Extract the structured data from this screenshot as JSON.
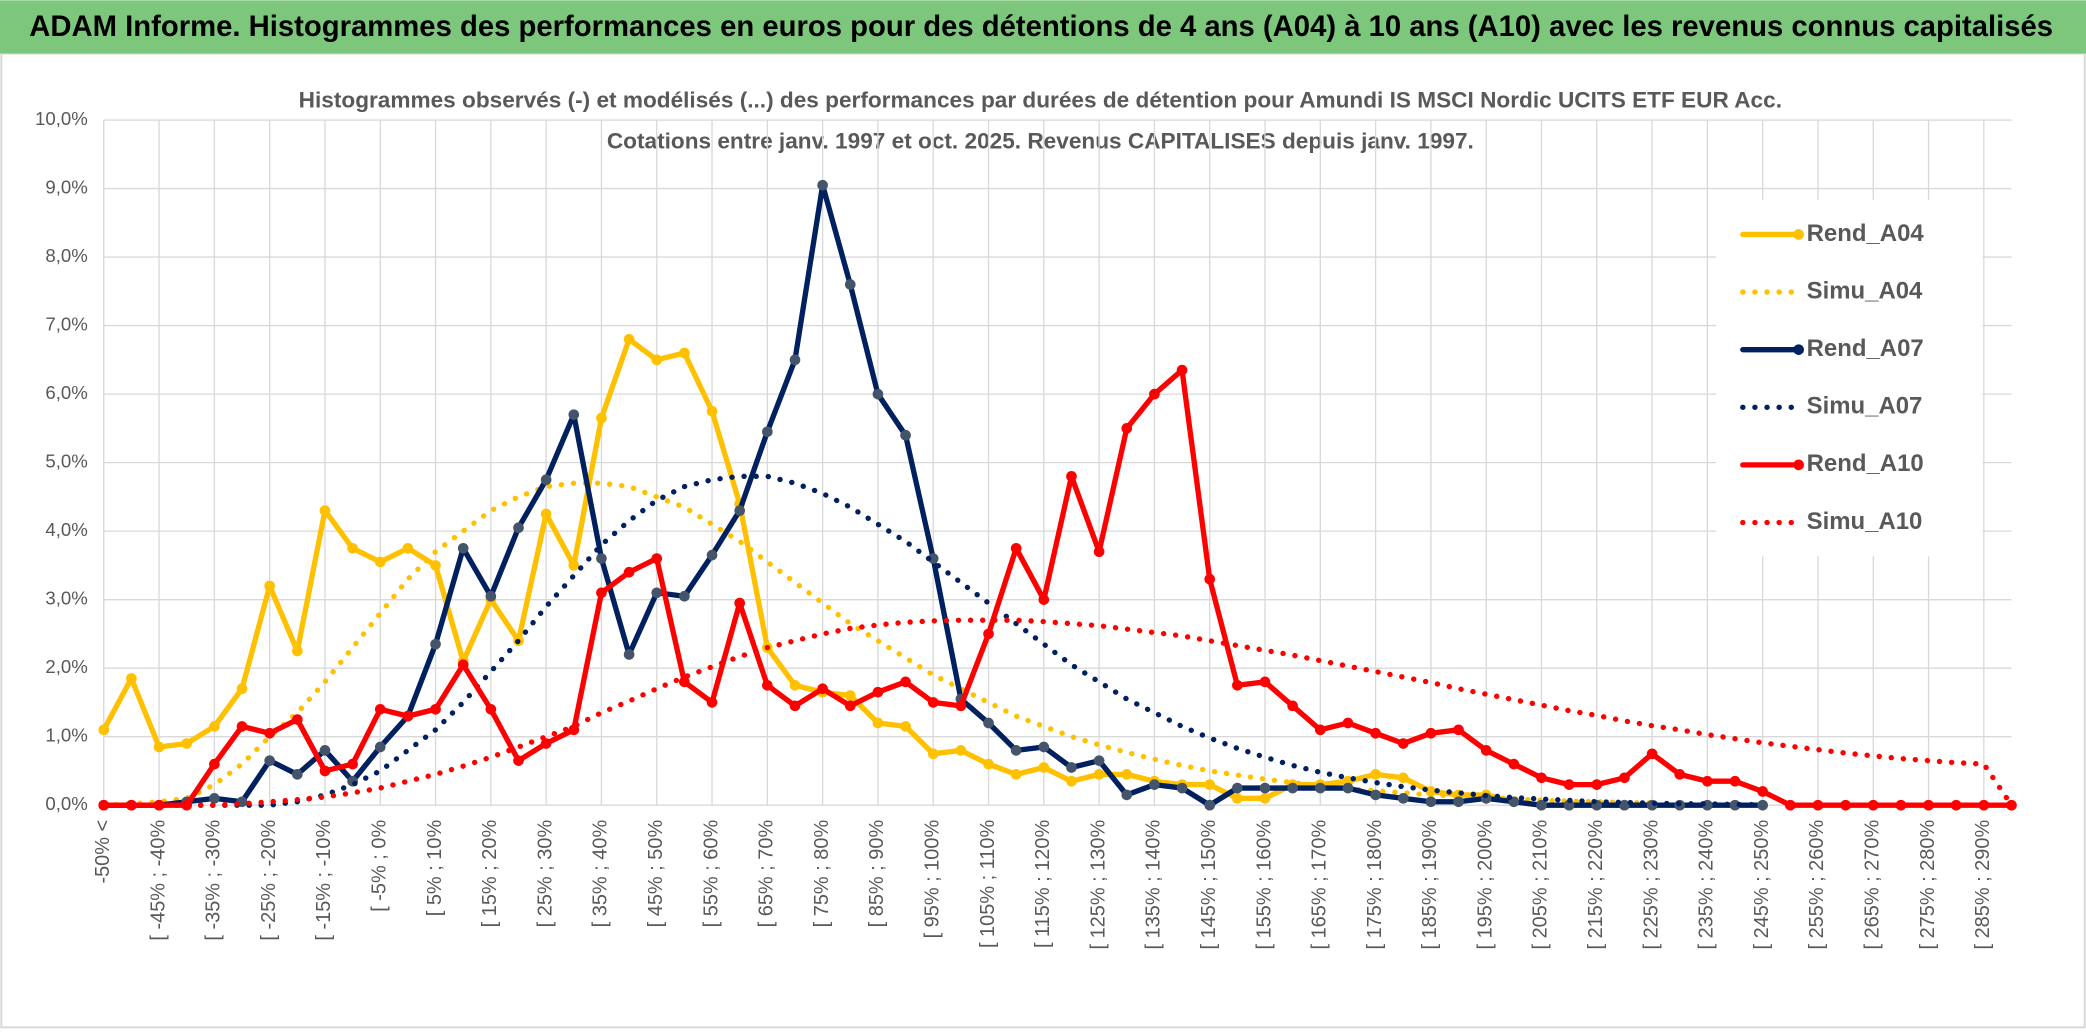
{
  "chart_data": {
    "type": "line",
    "header": "ADAM Informe. Histogrammes des performances en euros pour des détentions de 4 ans (A04) à 10 ans (A10) avec les revenus connus capitalisés",
    "title": "Histogrammes observés (-) et modélisés (...) des performances par durées de détention pour Amundi IS MSCI Nordic UCITS ETF EUR Acc.",
    "subtitle": "Cotations entre janv. 1997 et oct. 2025. Revenus CAPITALISES depuis janv. 1997.",
    "categories": [
      "-50% <",
      null,
      "[ -45% ; -40%",
      null,
      "[ -35% ; -30%",
      null,
      "[ -25% ; -20%",
      null,
      "[ -15% ; -10%",
      null,
      "[ -5% ; 0%",
      null,
      "[ 5% ; 10%",
      null,
      "[ 15% ; 20%",
      null,
      "[ 25% ; 30%",
      null,
      "[ 35% ; 40%",
      null,
      "[ 45% ; 50%",
      null,
      "[ 55% ; 60%",
      null,
      "[ 65% ; 70%",
      null,
      "[ 75% ; 80%",
      null,
      "[ 85% ; 90%",
      null,
      "[ 95% ; 100%",
      null,
      "[ 105% ; 110%",
      null,
      "[ 115% ; 120%",
      null,
      "[ 125% ; 130%",
      null,
      "[ 135% ; 140%",
      null,
      "[ 145% ; 150%",
      null,
      "[ 155% ; 160%",
      null,
      "[ 165% ; 170%",
      null,
      "[ 175% ; 180%",
      null,
      "[ 185% ; 190%",
      null,
      "[ 195% ; 200%",
      null,
      "[ 205% ; 210%",
      null,
      "[ 215% ; 220%",
      null,
      "[ 225% ; 230%",
      null,
      "[ 235% ; 240%",
      null,
      "[ 245% ; 250%",
      null,
      "[ 255% ; 260%",
      null,
      "[ 265% ; 270%",
      null,
      "[ 275% ; 280%",
      null,
      "[ 285% ; 290%",
      null
    ],
    "ylim": [
      0,
      10
    ],
    "yticks": [
      {
        "value": 0,
        "label": "0,0%"
      },
      {
        "value": 1,
        "label": "1,0%"
      },
      {
        "value": 2,
        "label": "2,0%"
      },
      {
        "value": 3,
        "label": "3,0%"
      },
      {
        "value": 4,
        "label": "4,0%"
      },
      {
        "value": 5,
        "label": "5,0%"
      },
      {
        "value": 6,
        "label": "6,0%"
      },
      {
        "value": 7,
        "label": "7,0%"
      },
      {
        "value": 8,
        "label": "8,0%"
      },
      {
        "value": 9,
        "label": "9,0%"
      },
      {
        "value": 10,
        "label": "10,0%"
      }
    ],
    "grid": true,
    "legend": "right",
    "series": [
      {
        "name": "Rend_A04",
        "color": "#FFC000",
        "style": "solid",
        "values": [
          1.1,
          1.85,
          0.85,
          0.9,
          1.15,
          1.7,
          3.2,
          2.25,
          4.3,
          3.75,
          3.55,
          3.75,
          3.5,
          2.1,
          3.0,
          2.4,
          4.25,
          3.5,
          5.65,
          6.8,
          6.5,
          6.6,
          5.75,
          4.4,
          2.3,
          1.75,
          1.65,
          1.6,
          1.2,
          1.15,
          0.75,
          0.8,
          0.6,
          0.45,
          0.55,
          0.35,
          0.45,
          0.45,
          0.35,
          0.3,
          0.3,
          0.1,
          0.1,
          0.3,
          0.3,
          0.35,
          0.45,
          0.4,
          0.2,
          0.15,
          0.15,
          0.05,
          0,
          0,
          0,
          0,
          0,
          null,
          null,
          null,
          null,
          null,
          null,
          null,
          null,
          null,
          null,
          null,
          null,
          null
        ]
      },
      {
        "name": "Simu_A04",
        "color": "#FFC000",
        "style": "dotted",
        "values": [
          0,
          0.02,
          0.05,
          0.1,
          0.3,
          0.6,
          1.0,
          1.35,
          1.8,
          2.3,
          2.8,
          3.3,
          3.7,
          4.0,
          4.3,
          4.5,
          4.65,
          4.7,
          4.7,
          4.65,
          4.5,
          4.35,
          4.1,
          3.85,
          3.55,
          3.25,
          2.95,
          2.65,
          2.4,
          2.15,
          1.9,
          1.7,
          1.5,
          1.3,
          1.15,
          1.0,
          0.88,
          0.77,
          0.67,
          0.58,
          0.5,
          0.44,
          0.38,
          0.33,
          0.28,
          0.24,
          0.21,
          0.18,
          0.15,
          0.13,
          0.11,
          0.09,
          0.07,
          0.06,
          0.05,
          0.04,
          0.03,
          null,
          null,
          null,
          null,
          null,
          null,
          null,
          null,
          null,
          null,
          null,
          null,
          null
        ]
      },
      {
        "name": "Rend_A07",
        "color": "#002060",
        "style": "solid",
        "values": [
          0,
          0,
          0,
          0.05,
          0.1,
          0.05,
          0.65,
          0.45,
          0.8,
          0.35,
          0.85,
          1.3,
          2.35,
          3.75,
          3.05,
          4.05,
          4.75,
          5.7,
          3.6,
          2.2,
          3.1,
          3.05,
          3.65,
          4.3,
          5.45,
          6.5,
          9.05,
          7.6,
          6.0,
          5.4,
          3.6,
          1.55,
          1.2,
          0.8,
          0.85,
          0.55,
          0.65,
          0.15,
          0.3,
          0.25,
          0,
          0.25,
          0.25,
          0.25,
          0.25,
          0.25,
          0.15,
          0.1,
          0.05,
          0.05,
          0.1,
          0.05,
          0,
          0,
          0,
          0,
          0,
          0,
          0,
          0,
          0,
          null,
          null,
          null,
          null,
          null,
          null,
          null,
          null,
          null
        ]
      },
      {
        "name": "Simu_A07",
        "color": "#002060",
        "style": "dotted",
        "values": [
          0,
          0,
          0,
          0,
          0,
          0,
          0,
          0.05,
          0.15,
          0.3,
          0.5,
          0.8,
          1.1,
          1.5,
          1.95,
          2.4,
          2.9,
          3.35,
          3.8,
          4.15,
          4.45,
          4.65,
          4.75,
          4.8,
          4.8,
          4.7,
          4.55,
          4.35,
          4.1,
          3.85,
          3.55,
          3.25,
          2.95,
          2.65,
          2.35,
          2.05,
          1.8,
          1.55,
          1.35,
          1.15,
          0.98,
          0.83,
          0.7,
          0.58,
          0.48,
          0.4,
          0.33,
          0.27,
          0.22,
          0.18,
          0.14,
          0.11,
          0.09,
          0.07,
          0.05,
          0.04,
          0.03,
          0.02,
          0.02,
          0.01,
          0.01,
          null,
          null,
          null,
          null,
          null,
          null,
          null,
          null,
          null
        ]
      },
      {
        "name": "Rend_A10",
        "color": "#FF0000",
        "style": "solid",
        "values": [
          0,
          0,
          0,
          0,
          0.6,
          1.15,
          1.05,
          1.25,
          0.5,
          0.6,
          1.4,
          1.3,
          1.4,
          2.05,
          1.4,
          0.65,
          0.9,
          1.1,
          3.1,
          3.4,
          3.6,
          1.8,
          1.5,
          2.95,
          1.75,
          1.45,
          1.7,
          1.45,
          1.65,
          1.8,
          1.5,
          1.45,
          2.5,
          3.75,
          3.0,
          4.8,
          3.7,
          5.5,
          6.0,
          6.35,
          3.3,
          1.75,
          1.8,
          1.45,
          1.1,
          1.2,
          1.05,
          0.9,
          1.05,
          1.1,
          0.8,
          0.6,
          0.4,
          0.3,
          0.3,
          0.4,
          0.75,
          0.45,
          0.35,
          0.35,
          0.2,
          0,
          0,
          0,
          0,
          0,
          0,
          0,
          0,
          0
        ]
      },
      {
        "name": "Simu_A10",
        "color": "#FF0000",
        "style": "dotted",
        "values": [
          0,
          0,
          0,
          0,
          0,
          0.02,
          0.05,
          0.08,
          0.12,
          0.18,
          0.25,
          0.35,
          0.45,
          0.57,
          0.7,
          0.85,
          1.0,
          1.15,
          1.35,
          1.52,
          1.7,
          1.87,
          2.02,
          2.17,
          2.3,
          2.4,
          2.5,
          2.58,
          2.63,
          2.67,
          2.69,
          2.7,
          2.7,
          2.7,
          2.68,
          2.65,
          2.62,
          2.57,
          2.52,
          2.47,
          2.4,
          2.33,
          2.26,
          2.19,
          2.11,
          2.03,
          1.95,
          1.87,
          1.79,
          1.7,
          1.62,
          1.54,
          1.46,
          1.38,
          1.31,
          1.23,
          1.16,
          1.1,
          1.03,
          0.97,
          0.91,
          0.86,
          0.81,
          0.76,
          0.72,
          0.68,
          0.65,
          0.62,
          0.6,
          0
        ]
      }
    ]
  }
}
